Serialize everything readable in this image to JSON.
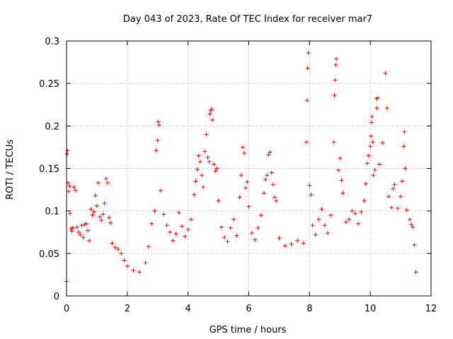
{
  "chart_data": {
    "type": "scatter",
    "title": "Day 043 of 2023, Rate Of TEC Index for receiver mar7",
    "xlabel": "GPS time / hours",
    "ylabel": "ROTI / TECUs",
    "xlim": [
      0,
      12
    ],
    "ylim": [
      0,
      0.3
    ],
    "xticks": [
      0,
      2,
      4,
      6,
      8,
      10,
      12
    ],
    "yticks": [
      0,
      0.05,
      0.1,
      0.15,
      0.2,
      0.25,
      0.3
    ],
    "xtick_labels": [
      "0",
      "2",
      "4",
      "6",
      "8",
      "10",
      "12"
    ],
    "ytick_labels": [
      "0",
      "0.05",
      "0.1",
      "0.15",
      "0.2",
      "0.25",
      "0.3"
    ],
    "grid": true,
    "marker": "+",
    "color": "#ff0000",
    "series": [
      {
        "name": "mar7",
        "points": [
          [
            0.0,
            0.017
          ],
          [
            0.02,
            0.167
          ],
          [
            0.03,
            0.171
          ],
          [
            0.05,
            0.133
          ],
          [
            0.07,
            0.123
          ],
          [
            0.1,
            0.129
          ],
          [
            0.12,
            0.097
          ],
          [
            0.15,
            0.079
          ],
          [
            0.18,
            0.076
          ],
          [
            0.2,
            0.08
          ],
          [
            0.25,
            0.128
          ],
          [
            0.3,
            0.124
          ],
          [
            0.35,
            0.081
          ],
          [
            0.4,
            0.075
          ],
          [
            0.45,
            0.072
          ],
          [
            0.5,
            0.083
          ],
          [
            0.55,
            0.069
          ],
          [
            0.6,
            0.084
          ],
          [
            0.65,
            0.085
          ],
          [
            0.7,
            0.077
          ],
          [
            0.75,
            0.065
          ],
          [
            0.8,
            0.102
          ],
          [
            0.85,
            0.095
          ],
          [
            0.9,
            0.099
          ],
          [
            0.95,
            0.118
          ],
          [
            1.0,
            0.106
          ],
          [
            1.05,
            0.133
          ],
          [
            1.1,
            0.093
          ],
          [
            1.15,
            0.089
          ],
          [
            1.2,
            0.096
          ],
          [
            1.25,
            0.109
          ],
          [
            1.3,
            0.138
          ],
          [
            1.35,
            0.133
          ],
          [
            1.4,
            0.092
          ],
          [
            1.45,
            0.086
          ],
          [
            1.5,
            0.062
          ],
          [
            1.6,
            0.057
          ],
          [
            1.7,
            0.055
          ],
          [
            1.8,
            0.05
          ],
          [
            1.9,
            0.042
          ],
          [
            2.0,
            0.035
          ],
          [
            2.2,
            0.03
          ],
          [
            2.4,
            0.028
          ],
          [
            2.6,
            0.039
          ],
          [
            2.7,
            0.058
          ],
          [
            2.8,
            0.085
          ],
          [
            2.9,
            0.1
          ],
          [
            2.95,
            0.171
          ],
          [
            3.0,
            0.183
          ],
          [
            3.02,
            0.205
          ],
          [
            3.05,
            0.201
          ],
          [
            3.1,
            0.124
          ],
          [
            3.2,
            0.096
          ],
          [
            3.3,
            0.083
          ],
          [
            3.4,
            0.075
          ],
          [
            3.5,
            0.065
          ],
          [
            3.6,
            0.073
          ],
          [
            3.7,
            0.098
          ],
          [
            3.8,
            0.082
          ],
          [
            3.9,
            0.07
          ],
          [
            4.0,
            0.078
          ],
          [
            4.1,
            0.09
          ],
          [
            4.2,
            0.119
          ],
          [
            4.25,
            0.135
          ],
          [
            4.3,
            0.149
          ],
          [
            4.35,
            0.165
          ],
          [
            4.4,
            0.158
          ],
          [
            4.45,
            0.142
          ],
          [
            4.5,
            0.128
          ],
          [
            4.55,
            0.17
          ],
          [
            4.6,
            0.19
          ],
          [
            4.65,
            0.163
          ],
          [
            4.7,
            0.158
          ],
          [
            4.72,
            0.214
          ],
          [
            4.75,
            0.218
          ],
          [
            4.78,
            0.22
          ],
          [
            4.8,
            0.207
          ],
          [
            4.85,
            0.155
          ],
          [
            4.9,
            0.147
          ],
          [
            4.95,
            0.15
          ],
          [
            5.0,
            0.112
          ],
          [
            5.1,
            0.081
          ],
          [
            5.2,
            0.069
          ],
          [
            5.3,
            0.064
          ],
          [
            5.4,
            0.08
          ],
          [
            5.5,
            0.09
          ],
          [
            5.6,
            0.071
          ],
          [
            5.7,
            0.116
          ],
          [
            5.75,
            0.142
          ],
          [
            5.8,
            0.175
          ],
          [
            5.85,
            0.168
          ],
          [
            5.9,
            0.127
          ],
          [
            5.95,
            0.134
          ],
          [
            6.0,
            0.105
          ],
          [
            6.1,
            0.074
          ],
          [
            6.2,
            0.066
          ],
          [
            6.3,
            0.08
          ],
          [
            6.4,
            0.095
          ],
          [
            6.5,
            0.121
          ],
          [
            6.55,
            0.137
          ],
          [
            6.6,
            0.142
          ],
          [
            6.65,
            0.166
          ],
          [
            6.7,
            0.169
          ],
          [
            6.75,
            0.145
          ],
          [
            6.8,
            0.131
          ],
          [
            6.85,
            0.116
          ],
          [
            6.9,
            0.112
          ],
          [
            7.0,
            0.068
          ],
          [
            7.2,
            0.059
          ],
          [
            7.4,
            0.061
          ],
          [
            7.6,
            0.065
          ],
          [
            7.8,
            0.062
          ],
          [
            7.9,
            0.181
          ],
          [
            7.92,
            0.23
          ],
          [
            7.94,
            0.268
          ],
          [
            7.96,
            0.286
          ],
          [
            8.0,
            0.13
          ],
          [
            8.05,
            0.119
          ],
          [
            8.1,
            0.083
          ],
          [
            8.2,
            0.072
          ],
          [
            8.3,
            0.09
          ],
          [
            8.4,
            0.102
          ],
          [
            8.5,
            0.083
          ],
          [
            8.6,
            0.074
          ],
          [
            8.7,
            0.095
          ],
          [
            8.8,
            0.181
          ],
          [
            8.82,
            0.236
          ],
          [
            8.84,
            0.254
          ],
          [
            8.86,
            0.272
          ],
          [
            8.88,
            0.279
          ],
          [
            8.95,
            0.148
          ],
          [
            9.0,
            0.162
          ],
          [
            9.05,
            0.136
          ],
          [
            9.1,
            0.121
          ],
          [
            9.2,
            0.087
          ],
          [
            9.3,
            0.09
          ],
          [
            9.4,
            0.1
          ],
          [
            9.5,
            0.097
          ],
          [
            9.6,
            0.085
          ],
          [
            9.7,
            0.099
          ],
          [
            9.8,
            0.112
          ],
          [
            9.85,
            0.132
          ],
          [
            9.9,
            0.156
          ],
          [
            9.95,
            0.165
          ],
          [
            10.0,
            0.176
          ],
          [
            10.02,
            0.188
          ],
          [
            10.04,
            0.204
          ],
          [
            10.06,
            0.211
          ],
          [
            10.08,
            0.181
          ],
          [
            10.1,
            0.142
          ],
          [
            10.15,
            0.148
          ],
          [
            10.2,
            0.232
          ],
          [
            10.22,
            0.221
          ],
          [
            10.25,
            0.233
          ],
          [
            10.3,
            0.155
          ],
          [
            10.4,
            0.18
          ],
          [
            10.5,
            0.262
          ],
          [
            10.55,
            0.221
          ],
          [
            10.6,
            0.117
          ],
          [
            10.7,
            0.104
          ],
          [
            10.75,
            0.126
          ],
          [
            10.8,
            0.131
          ],
          [
            10.9,
            0.103
          ],
          [
            11.0,
            0.117
          ],
          [
            11.05,
            0.135
          ],
          [
            11.1,
            0.176
          ],
          [
            11.12,
            0.193
          ],
          [
            11.15,
            0.15
          ],
          [
            11.2,
            0.101
          ],
          [
            11.3,
            0.09
          ],
          [
            11.35,
            0.084
          ],
          [
            11.4,
            0.081
          ],
          [
            11.45,
            0.06
          ],
          [
            11.5,
            0.028
          ]
        ]
      }
    ]
  }
}
